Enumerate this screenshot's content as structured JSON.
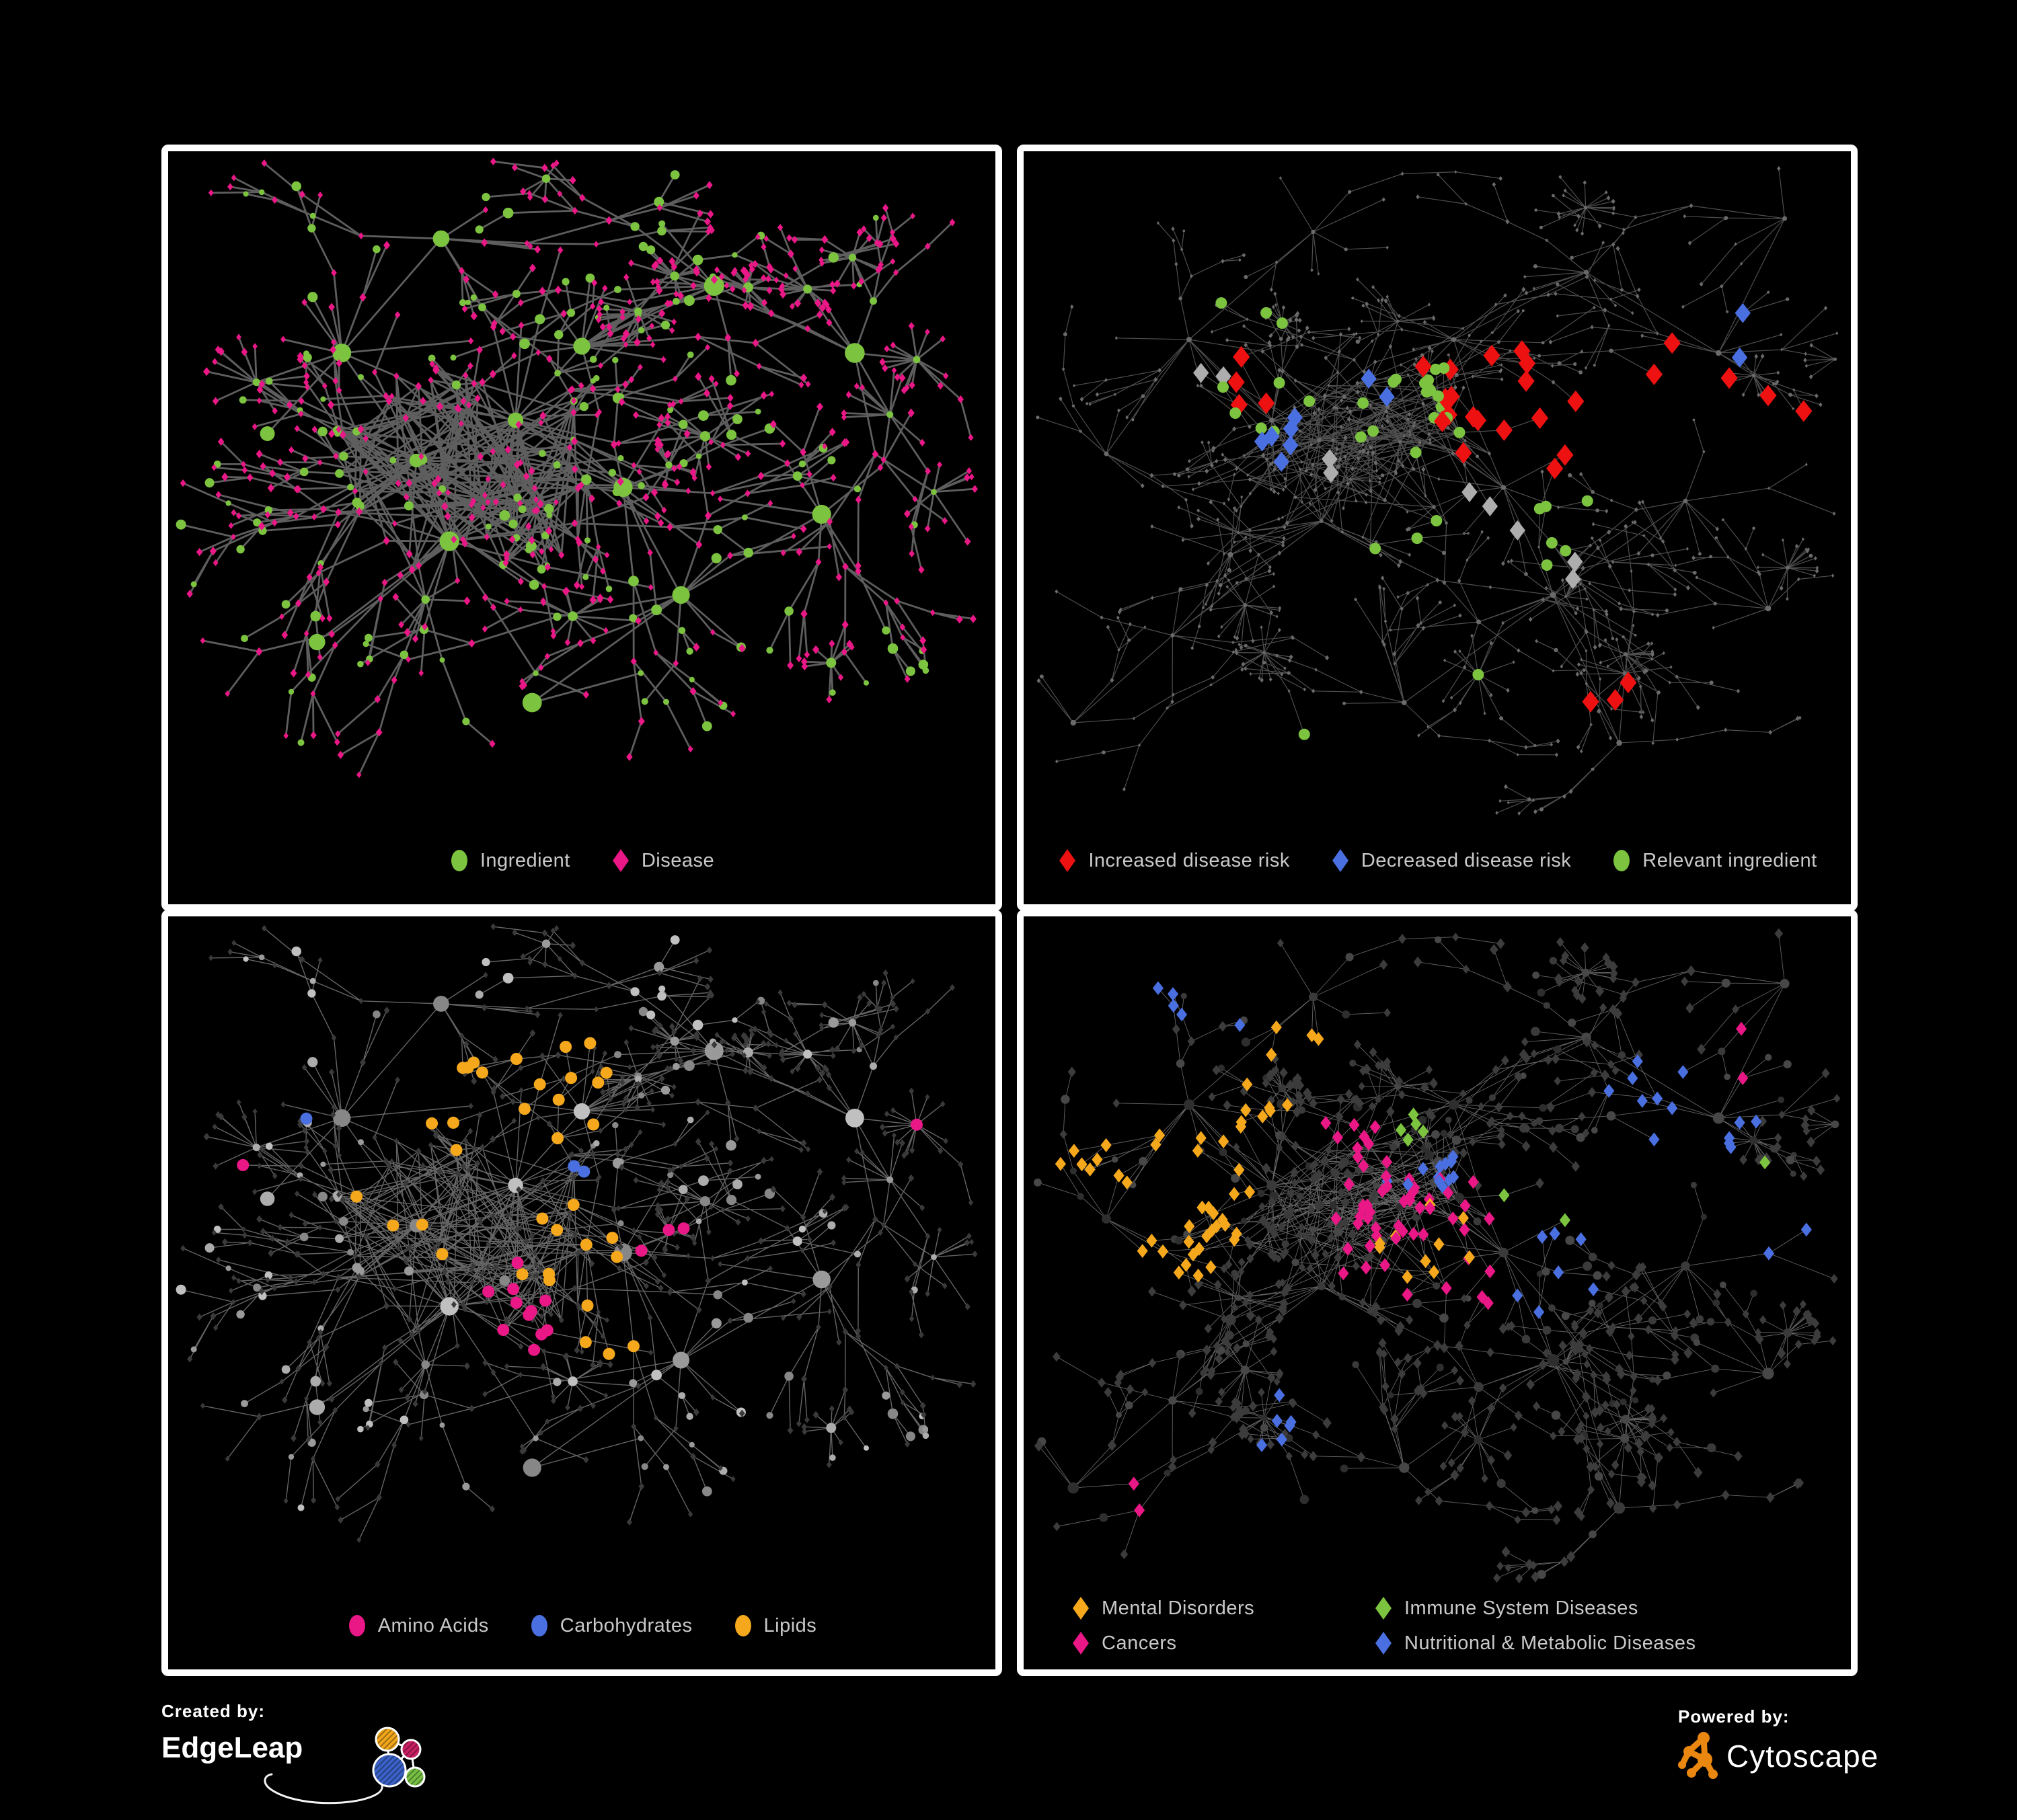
{
  "page": {
    "background": "#000000",
    "panel_border_color": "#FFFFFF"
  },
  "footer": {
    "created_by": {
      "label": "Created by:",
      "brand": "EdgeLeap"
    },
    "powered_by": {
      "label": "Powered by:",
      "brand": "Cytoscape"
    },
    "edgeleap_logo_colors": {
      "orange": "#F2A71B",
      "magenta": "#C91E63",
      "blue": "#3A62C8",
      "green": "#76C043"
    },
    "cytoscape_logo_color": "#E98711"
  },
  "layouts": {
    "A": {
      "seed": 7,
      "depth": 4,
      "step": 0.085,
      "shrink": 0.8,
      "branch": 0.5,
      "spread": 1.5,
      "ing_prob": 0.3,
      "burst_prob": 0.055,
      "core": [
        0.36,
        0.48
      ],
      "core_r": 0.17,
      "extra_edges": 150,
      "max_nodes": 820,
      "hubs": [
        [
          0.3,
          0.46,
          22
        ],
        [
          0.42,
          0.4,
          18
        ],
        [
          0.34,
          0.58,
          15
        ],
        [
          0.5,
          0.29,
          14
        ],
        [
          0.55,
          0.5,
          12
        ],
        [
          0.21,
          0.3,
          9
        ],
        [
          0.33,
          0.13,
          7
        ],
        [
          0.66,
          0.2,
          9
        ],
        [
          0.83,
          0.3,
          7
        ],
        [
          0.62,
          0.66,
          9
        ],
        [
          0.79,
          0.54,
          7
        ],
        [
          0.44,
          0.82,
          8
        ],
        [
          0.18,
          0.73,
          7
        ],
        [
          0.12,
          0.42,
          6
        ]
      ]
    },
    "B": {
      "seed": 13,
      "depth": 4,
      "step": 0.065,
      "shrink": 0.82,
      "branch": 0.5,
      "spread": 1.6,
      "ing_prob": 0.25,
      "burst_prob": 0.05,
      "core": [
        0.42,
        0.44
      ],
      "core_r": 0.16,
      "extra_edges": 120,
      "max_nodes": 1050,
      "hubs": [
        [
          0.3,
          0.4,
          15
        ],
        [
          0.44,
          0.38,
          13
        ],
        [
          0.36,
          0.55,
          11
        ],
        [
          0.52,
          0.28,
          11
        ],
        [
          0.58,
          0.5,
          11
        ],
        [
          0.2,
          0.28,
          8
        ],
        [
          0.35,
          0.12,
          7
        ],
        [
          0.68,
          0.18,
          8
        ],
        [
          0.84,
          0.3,
          7
        ],
        [
          0.64,
          0.66,
          8
        ],
        [
          0.8,
          0.52,
          7
        ],
        [
          0.46,
          0.82,
          7
        ],
        [
          0.18,
          0.72,
          7
        ],
        [
          0.1,
          0.45,
          6
        ],
        [
          0.9,
          0.68,
          6
        ],
        [
          0.72,
          0.88,
          5
        ],
        [
          0.55,
          0.7,
          6
        ],
        [
          0.25,
          0.6,
          7
        ],
        [
          0.92,
          0.1,
          5
        ],
        [
          0.06,
          0.85,
          4
        ]
      ]
    }
  },
  "chart_data": [
    {
      "id": "ingredient-disease-network",
      "type": "network",
      "position": "top-left",
      "layout": "A",
      "legend_layout": "row",
      "legend": [
        {
          "label": "Ingredient",
          "shape": "ellipse",
          "color": "#7CC43F"
        },
        {
          "label": "Disease",
          "shape": "diamond",
          "color": "#EA1787"
        }
      ],
      "style": {
        "edge_color": "#6F6F6F",
        "edge_width": 2.8,
        "edge_opacity": 0.85,
        "ing_colors": [
          "#7CC43F"
        ],
        "ing_r": [
          4,
          8
        ],
        "hub_r": [
          10,
          15
        ],
        "dis_colors": [
          "#EA1787"
        ],
        "dis_s": [
          4.2,
          5.8
        ]
      },
      "highlights": []
    },
    {
      "id": "disease-risk-network",
      "type": "network",
      "position": "top-right",
      "layout": "B",
      "legend_layout": "row",
      "legend": [
        {
          "label": "Increased disease risk",
          "shape": "diamond",
          "color": "#EE1111"
        },
        {
          "label": "Decreased disease risk",
          "shape": "diamond",
          "color": "#4A6FE0"
        },
        {
          "label": "Relevant ingredient",
          "shape": "ellipse",
          "color": "#7CC43F"
        }
      ],
      "style": {
        "edge_color": "#575757",
        "edge_width": 1.2,
        "edge_opacity": 0.9,
        "ing_colors": [
          "#6A6A6A"
        ],
        "ing_r": [
          1.8,
          3.2
        ],
        "hub_r": [
          3,
          4.5
        ],
        "dis_colors": [
          "#6A6A6A"
        ],
        "dis_s": [
          2.2,
          3.4
        ]
      },
      "hl_seed": 101,
      "highlights": [
        {
          "t": "dis",
          "shape": "diamond",
          "color": "#EE1111",
          "s": 14,
          "cx": 0.62,
          "cy": 0.4,
          "r": 0.14,
          "n": 14
        },
        {
          "t": "dis",
          "shape": "diamond",
          "color": "#EE1111",
          "s": 14,
          "cx": 0.5,
          "cy": 0.33,
          "r": 0.08,
          "n": 4
        },
        {
          "t": "dis",
          "shape": "diamond",
          "color": "#EE1111",
          "s": 14,
          "cx": 0.27,
          "cy": 0.37,
          "r": 0.09,
          "n": 4
        },
        {
          "t": "dis",
          "shape": "diamond",
          "color": "#EE1111",
          "s": 14,
          "cx": 0.72,
          "cy": 0.8,
          "r": 0.08,
          "n": 3
        },
        {
          "t": "dis",
          "shape": "diamond",
          "color": "#EE1111",
          "s": 14,
          "cx": 0.9,
          "cy": 0.42,
          "r": 0.06,
          "n": 2
        },
        {
          "t": "dis",
          "shape": "diamond",
          "color": "#EE1111",
          "s": 14,
          "cx": 0.78,
          "cy": 0.33,
          "r": 0.08,
          "n": 3
        },
        {
          "t": "dis",
          "shape": "diamond",
          "color": "#4A6FE0",
          "s": 13,
          "cx": 0.31,
          "cy": 0.43,
          "r": 0.09,
          "n": 6
        },
        {
          "t": "dis",
          "shape": "diamond",
          "color": "#4A6FE0",
          "s": 13,
          "cx": 0.86,
          "cy": 0.26,
          "r": 0.05,
          "n": 2
        },
        {
          "t": "dis",
          "shape": "diamond",
          "color": "#4A6FE0",
          "s": 13,
          "cx": 0.43,
          "cy": 0.36,
          "r": 0.05,
          "n": 2
        },
        {
          "t": "dis",
          "shape": "diamond",
          "color": "#ADADAD",
          "s": 13,
          "cx": 0.24,
          "cy": 0.33,
          "r": 0.06,
          "n": 2
        },
        {
          "t": "dis",
          "shape": "diamond",
          "color": "#ADADAD",
          "s": 13,
          "cx": 0.37,
          "cy": 0.47,
          "r": 0.07,
          "n": 2
        },
        {
          "t": "dis",
          "shape": "diamond",
          "color": "#ADADAD",
          "s": 13,
          "cx": 0.58,
          "cy": 0.52,
          "r": 0.09,
          "n": 3
        },
        {
          "t": "dis",
          "shape": "diamond",
          "color": "#ADADAD",
          "s": 13,
          "cx": 0.66,
          "cy": 0.62,
          "r": 0.06,
          "n": 2
        },
        {
          "t": "ing",
          "shape": "circle",
          "color": "#7CC43F",
          "s": 8.5,
          "cx": 0.5,
          "cy": 0.4,
          "r": 0.18,
          "n": 18
        },
        {
          "t": "ing",
          "shape": "circle",
          "color": "#7CC43F",
          "s": 8.5,
          "cx": 0.3,
          "cy": 0.38,
          "r": 0.1,
          "n": 6
        },
        {
          "t": "ing",
          "shape": "circle",
          "color": "#7CC43F",
          "s": 8.5,
          "cx": 0.6,
          "cy": 0.55,
          "r": 0.12,
          "n": 6
        },
        {
          "t": "ing",
          "shape": "circle",
          "color": "#7CC43F",
          "s": 8.5,
          "cx": 0.25,
          "cy": 0.27,
          "r": 0.08,
          "n": 3
        },
        {
          "t": "ing",
          "shape": "circle",
          "color": "#7CC43F",
          "s": 8.5,
          "cx": 0.45,
          "cy": 0.62,
          "r": 0.1,
          "n": 3
        },
        {
          "t": "ing",
          "shape": "circle",
          "color": "#7CC43F",
          "s": 8.5,
          "cx": 0.35,
          "cy": 0.9,
          "r": 0.08,
          "n": 1
        },
        {
          "t": "ing",
          "shape": "circle",
          "color": "#7CC43F",
          "s": 8.5,
          "cx": 0.55,
          "cy": 0.76,
          "r": 0.06,
          "n": 1
        }
      ]
    },
    {
      "id": "nutrient-class-network",
      "type": "network",
      "position": "bottom-left",
      "layout": "A",
      "legend_layout": "row",
      "legend": [
        {
          "label": "Amino Acids",
          "shape": "ellipse",
          "color": "#EA1787"
        },
        {
          "label": "Carbohydrates",
          "shape": "ellipse",
          "color": "#4A6FE0"
        },
        {
          "label": "Lipids",
          "shape": "ellipse",
          "color": "#F5A81C"
        }
      ],
      "style": {
        "edge_color": "#7E7E7E",
        "edge_width": 1.4,
        "edge_opacity": 0.8,
        "ing_colors": [
          "#878787",
          "#9A9A9A",
          "#ACACAC",
          "#C0C0C0"
        ],
        "ing_r": [
          4,
          8
        ],
        "hub_r": [
          10,
          14
        ],
        "dis_colors": [
          "#3A3A3A"
        ],
        "dis_s": [
          3.8,
          5
        ]
      },
      "hl_seed": 202,
      "highlights": [
        {
          "t": "ing",
          "shape": "circle",
          "color": "#F5A81C",
          "s": 9,
          "cx": 0.42,
          "cy": 0.26,
          "r": 0.12,
          "n": 34
        },
        {
          "t": "ing",
          "shape": "circle",
          "color": "#F5A81C",
          "s": 9,
          "cx": 0.32,
          "cy": 0.42,
          "r": 0.1,
          "n": 10
        },
        {
          "t": "ing",
          "shape": "circle",
          "color": "#F5A81C",
          "s": 9,
          "cx": 0.55,
          "cy": 0.6,
          "r": 0.09,
          "n": 7
        },
        {
          "t": "ing",
          "shape": "circle",
          "color": "#F5A81C",
          "s": 9,
          "cx": 0.5,
          "cy": 0.5,
          "r": 0.5,
          "n": 9
        },
        {
          "t": "ing",
          "shape": "circle",
          "color": "#4A6FE0",
          "s": 9,
          "cx": 0.41,
          "cy": 0.22,
          "r": 0.09,
          "n": 7
        },
        {
          "t": "ing",
          "shape": "circle",
          "color": "#4A6FE0",
          "s": 9,
          "cx": 0.15,
          "cy": 0.3,
          "r": 0.05,
          "n": 1
        },
        {
          "t": "ing",
          "shape": "circle",
          "color": "#4A6FE0",
          "s": 9,
          "cx": 0.77,
          "cy": 0.6,
          "r": 0.06,
          "n": 1
        },
        {
          "t": "ing",
          "shape": "circle",
          "color": "#4A6FE0",
          "s": 9,
          "cx": 0.47,
          "cy": 0.4,
          "r": 0.06,
          "n": 2
        },
        {
          "t": "ing",
          "shape": "circle",
          "color": "#EA1787",
          "s": 9,
          "cx": 0.5,
          "cy": 0.55,
          "r": 0.5,
          "n": 14
        },
        {
          "t": "ing",
          "shape": "circle",
          "color": "#EA1787",
          "s": 9,
          "cx": 0.1,
          "cy": 0.37,
          "r": 0.06,
          "n": 1
        },
        {
          "t": "ing",
          "shape": "circle",
          "color": "#EA1787",
          "s": 9,
          "cx": 0.95,
          "cy": 0.33,
          "r": 0.05,
          "n": 1
        }
      ]
    },
    {
      "id": "disease-class-network",
      "type": "network",
      "position": "bottom-right",
      "layout": "B",
      "legend_layout": "grid2",
      "legend": [
        {
          "label": "Mental Disorders",
          "shape": "diamond",
          "color": "#F5A81C"
        },
        {
          "label": "Immune System Diseases",
          "shape": "diamond",
          "color": "#7CC43F"
        },
        {
          "label": "Cancers",
          "shape": "diamond",
          "color": "#EA1787"
        },
        {
          "label": "Nutritional & Metabolic Diseases",
          "shape": "diamond",
          "color": "#4A6FE0"
        }
      ],
      "style": {
        "edge_color": "#9A9A9A",
        "edge_width": 0.9,
        "edge_opacity": 0.65,
        "ing_colors": [
          "#2E2E2E",
          "#3A3A3A",
          "#474747"
        ],
        "ing_r": [
          4.5,
          7
        ],
        "hub_r": [
          6,
          9
        ],
        "dis_colors": [
          "#3C3C3C"
        ],
        "dis_s": [
          5.5,
          7.5
        ]
      },
      "hl_seed": 303,
      "highlights": [
        {
          "t": "dis",
          "shape": "diamond",
          "color": "#F5A81C",
          "s": 9,
          "cx": 0.15,
          "cy": 0.42,
          "r": 0.13,
          "n": 70
        },
        {
          "t": "dis",
          "shape": "diamond",
          "color": "#F5A81C",
          "s": 9,
          "cx": 0.27,
          "cy": 0.3,
          "r": 0.08,
          "n": 8
        },
        {
          "t": "dis",
          "shape": "diamond",
          "color": "#F5A81C",
          "s": 9,
          "cx": 0.33,
          "cy": 0.16,
          "r": 0.06,
          "n": 4
        },
        {
          "t": "dis",
          "shape": "diamond",
          "color": "#F5A81C",
          "s": 9,
          "cx": 0.5,
          "cy": 0.5,
          "r": 0.45,
          "n": 10
        },
        {
          "t": "dis",
          "shape": "diamond",
          "color": "#F5A81C",
          "s": 9,
          "cx": 0.4,
          "cy": 0.95,
          "r": 0.08,
          "n": 2
        },
        {
          "t": "dis",
          "shape": "diamond",
          "color": "#EA1787",
          "s": 9,
          "cx": 0.47,
          "cy": 0.47,
          "r": 0.12,
          "n": 40
        },
        {
          "t": "dis",
          "shape": "diamond",
          "color": "#EA1787",
          "s": 9,
          "cx": 0.4,
          "cy": 0.33,
          "r": 0.08,
          "n": 8
        },
        {
          "t": "dis",
          "shape": "diamond",
          "color": "#EA1787",
          "s": 9,
          "cx": 0.89,
          "cy": 0.22,
          "r": 0.06,
          "n": 5
        },
        {
          "t": "dis",
          "shape": "diamond",
          "color": "#EA1787",
          "s": 9,
          "cx": 0.5,
          "cy": 0.5,
          "r": 0.5,
          "n": 8
        },
        {
          "t": "dis",
          "shape": "diamond",
          "color": "#EA1787",
          "s": 9,
          "cx": 0.15,
          "cy": 0.88,
          "r": 0.07,
          "n": 2
        },
        {
          "t": "dis",
          "shape": "diamond",
          "color": "#4A6FE0",
          "s": 9,
          "cx": 0.63,
          "cy": 0.53,
          "r": 0.07,
          "n": 14
        },
        {
          "t": "dis",
          "shape": "diamond",
          "color": "#4A6FE0",
          "s": 9,
          "cx": 0.79,
          "cy": 0.3,
          "r": 0.1,
          "n": 14
        },
        {
          "t": "dis",
          "shape": "diamond",
          "color": "#4A6FE0",
          "s": 9,
          "cx": 0.87,
          "cy": 0.47,
          "r": 0.08,
          "n": 8
        },
        {
          "t": "dis",
          "shape": "diamond",
          "color": "#4A6FE0",
          "s": 9,
          "cx": 0.3,
          "cy": 0.74,
          "r": 0.1,
          "n": 6
        },
        {
          "t": "dis",
          "shape": "diamond",
          "color": "#4A6FE0",
          "s": 9,
          "cx": 0.22,
          "cy": 0.1,
          "r": 0.09,
          "n": 5
        },
        {
          "t": "dis",
          "shape": "diamond",
          "color": "#4A6FE0",
          "s": 9,
          "cx": 0.5,
          "cy": 0.4,
          "r": 0.55,
          "n": 12
        },
        {
          "t": "dis",
          "shape": "diamond",
          "color": "#7CC43F",
          "s": 9,
          "cx": 0.45,
          "cy": 0.33,
          "r": 0.2,
          "n": 5
        },
        {
          "t": "dis",
          "shape": "diamond",
          "color": "#7CC43F",
          "s": 9,
          "cx": 0.6,
          "cy": 0.45,
          "r": 0.1,
          "n": 2
        },
        {
          "t": "dis",
          "shape": "diamond",
          "color": "#7CC43F",
          "s": 9,
          "cx": 0.28,
          "cy": 0.97,
          "r": 0.06,
          "n": 1
        },
        {
          "t": "dis",
          "shape": "diamond",
          "color": "#7CC43F",
          "s": 9,
          "cx": 0.86,
          "cy": 0.4,
          "r": 0.05,
          "n": 1
        }
      ]
    }
  ]
}
